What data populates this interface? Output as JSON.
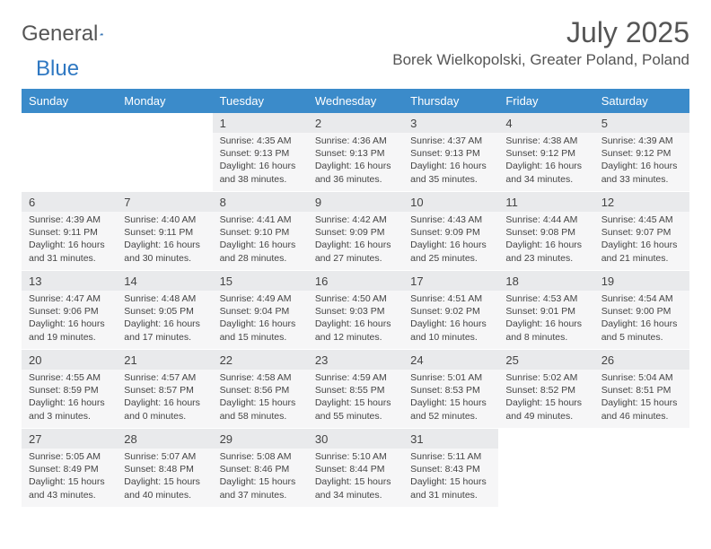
{
  "brand": {
    "name_part1": "General",
    "name_part2": "Blue",
    "accent": "#2f78c2"
  },
  "title": {
    "month": "July 2025",
    "location": "Borek Wielkopolski, Greater Poland, Poland"
  },
  "style": {
    "header_bg": "#3b8bca",
    "header_text": "#ffffff",
    "daynum_bg": "#e9eaec",
    "body_bg": "#f6f6f7",
    "text_color": "#444444"
  },
  "weekdays": [
    "Sunday",
    "Monday",
    "Tuesday",
    "Wednesday",
    "Thursday",
    "Friday",
    "Saturday"
  ],
  "weeks": [
    [
      null,
      null,
      {
        "n": "1",
        "sr": "4:35 AM",
        "ss": "9:13 PM",
        "dl": "16 hours and 38 minutes."
      },
      {
        "n": "2",
        "sr": "4:36 AM",
        "ss": "9:13 PM",
        "dl": "16 hours and 36 minutes."
      },
      {
        "n": "3",
        "sr": "4:37 AM",
        "ss": "9:13 PM",
        "dl": "16 hours and 35 minutes."
      },
      {
        "n": "4",
        "sr": "4:38 AM",
        "ss": "9:12 PM",
        "dl": "16 hours and 34 minutes."
      },
      {
        "n": "5",
        "sr": "4:39 AM",
        "ss": "9:12 PM",
        "dl": "16 hours and 33 minutes."
      }
    ],
    [
      {
        "n": "6",
        "sr": "4:39 AM",
        "ss": "9:11 PM",
        "dl": "16 hours and 31 minutes."
      },
      {
        "n": "7",
        "sr": "4:40 AM",
        "ss": "9:11 PM",
        "dl": "16 hours and 30 minutes."
      },
      {
        "n": "8",
        "sr": "4:41 AM",
        "ss": "9:10 PM",
        "dl": "16 hours and 28 minutes."
      },
      {
        "n": "9",
        "sr": "4:42 AM",
        "ss": "9:09 PM",
        "dl": "16 hours and 27 minutes."
      },
      {
        "n": "10",
        "sr": "4:43 AM",
        "ss": "9:09 PM",
        "dl": "16 hours and 25 minutes."
      },
      {
        "n": "11",
        "sr": "4:44 AM",
        "ss": "9:08 PM",
        "dl": "16 hours and 23 minutes."
      },
      {
        "n": "12",
        "sr": "4:45 AM",
        "ss": "9:07 PM",
        "dl": "16 hours and 21 minutes."
      }
    ],
    [
      {
        "n": "13",
        "sr": "4:47 AM",
        "ss": "9:06 PM",
        "dl": "16 hours and 19 minutes."
      },
      {
        "n": "14",
        "sr": "4:48 AM",
        "ss": "9:05 PM",
        "dl": "16 hours and 17 minutes."
      },
      {
        "n": "15",
        "sr": "4:49 AM",
        "ss": "9:04 PM",
        "dl": "16 hours and 15 minutes."
      },
      {
        "n": "16",
        "sr": "4:50 AM",
        "ss": "9:03 PM",
        "dl": "16 hours and 12 minutes."
      },
      {
        "n": "17",
        "sr": "4:51 AM",
        "ss": "9:02 PM",
        "dl": "16 hours and 10 minutes."
      },
      {
        "n": "18",
        "sr": "4:53 AM",
        "ss": "9:01 PM",
        "dl": "16 hours and 8 minutes."
      },
      {
        "n": "19",
        "sr": "4:54 AM",
        "ss": "9:00 PM",
        "dl": "16 hours and 5 minutes."
      }
    ],
    [
      {
        "n": "20",
        "sr": "4:55 AM",
        "ss": "8:59 PM",
        "dl": "16 hours and 3 minutes."
      },
      {
        "n": "21",
        "sr": "4:57 AM",
        "ss": "8:57 PM",
        "dl": "16 hours and 0 minutes."
      },
      {
        "n": "22",
        "sr": "4:58 AM",
        "ss": "8:56 PM",
        "dl": "15 hours and 58 minutes."
      },
      {
        "n": "23",
        "sr": "4:59 AM",
        "ss": "8:55 PM",
        "dl": "15 hours and 55 minutes."
      },
      {
        "n": "24",
        "sr": "5:01 AM",
        "ss": "8:53 PM",
        "dl": "15 hours and 52 minutes."
      },
      {
        "n": "25",
        "sr": "5:02 AM",
        "ss": "8:52 PM",
        "dl": "15 hours and 49 minutes."
      },
      {
        "n": "26",
        "sr": "5:04 AM",
        "ss": "8:51 PM",
        "dl": "15 hours and 46 minutes."
      }
    ],
    [
      {
        "n": "27",
        "sr": "5:05 AM",
        "ss": "8:49 PM",
        "dl": "15 hours and 43 minutes."
      },
      {
        "n": "28",
        "sr": "5:07 AM",
        "ss": "8:48 PM",
        "dl": "15 hours and 40 minutes."
      },
      {
        "n": "29",
        "sr": "5:08 AM",
        "ss": "8:46 PM",
        "dl": "15 hours and 37 minutes."
      },
      {
        "n": "30",
        "sr": "5:10 AM",
        "ss": "8:44 PM",
        "dl": "15 hours and 34 minutes."
      },
      {
        "n": "31",
        "sr": "5:11 AM",
        "ss": "8:43 PM",
        "dl": "15 hours and 31 minutes."
      },
      null,
      null
    ]
  ],
  "labels": {
    "sunrise": "Sunrise: ",
    "sunset": "Sunset: ",
    "daylight": "Daylight: "
  }
}
